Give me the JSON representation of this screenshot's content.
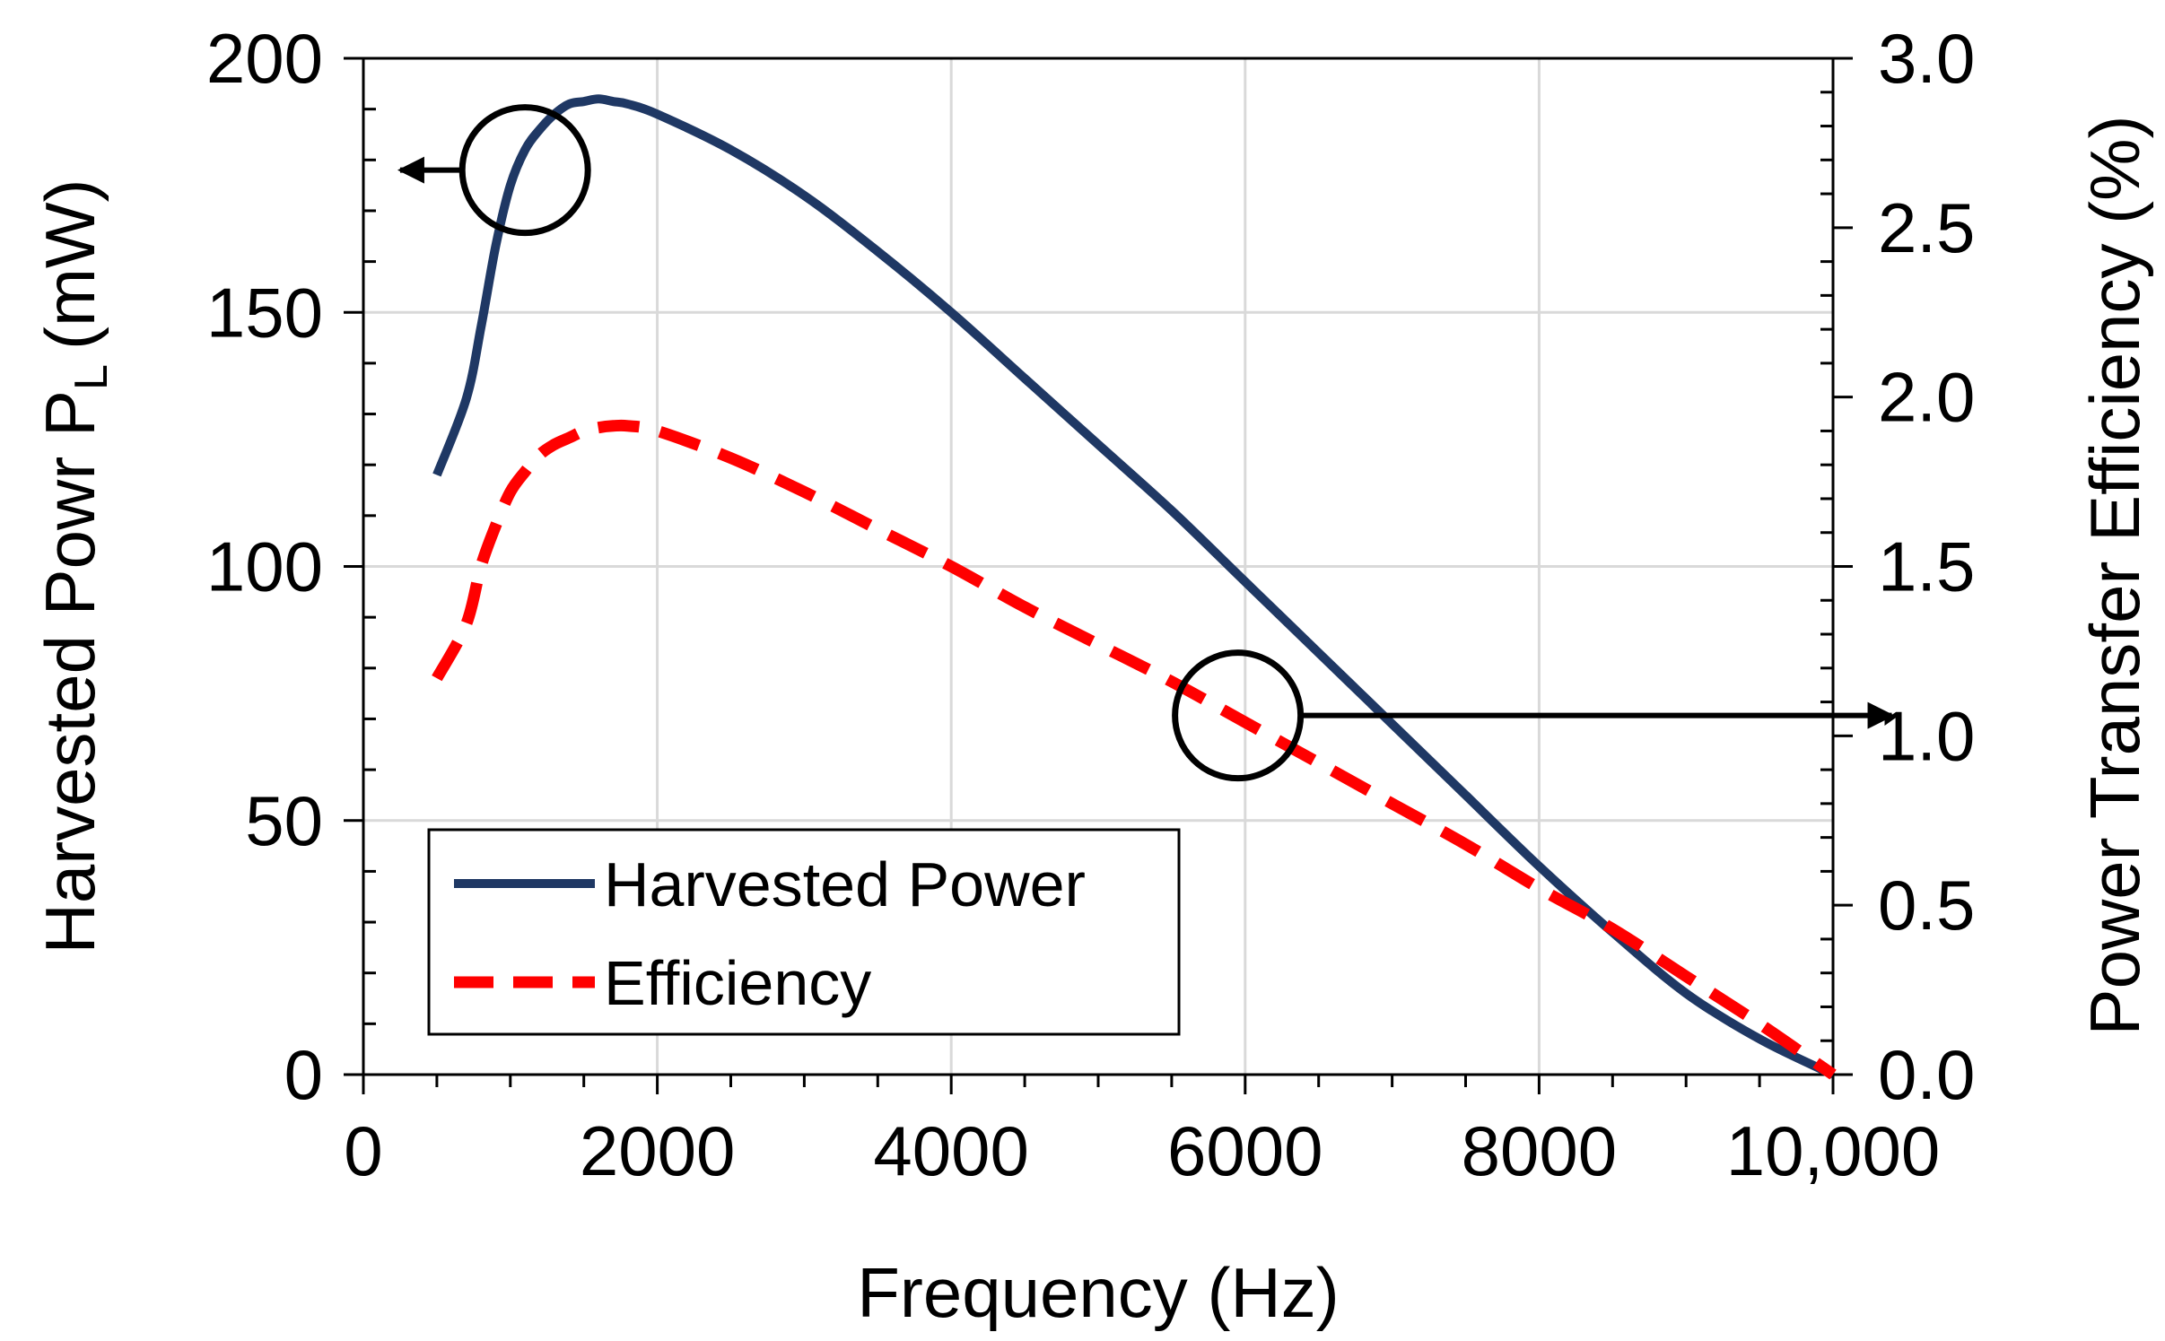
{
  "chart_data": {
    "type": "line",
    "title": "",
    "xlabel": "Frequency (Hz)",
    "ylabel": "Harvested Powr P",
    "ylabel_sub": "L",
    "ylabel_unit": "(mW)",
    "y2label": "Power Transfer Efficiency (%)",
    "xlim": [
      0,
      10000
    ],
    "ylim": [
      0,
      200
    ],
    "y2lim": [
      0,
      3.0
    ],
    "x_ticks": [
      0,
      2000,
      4000,
      6000,
      8000,
      10000
    ],
    "x_tick_labels": [
      "0",
      "2000",
      "4000",
      "6000",
      "8000",
      "10,000"
    ],
    "y_ticks": [
      0,
      50,
      100,
      150,
      200
    ],
    "y_tick_labels": [
      "0",
      "50",
      "100",
      "150",
      "200"
    ],
    "y2_ticks": [
      0,
      0.5,
      1.0,
      1.5,
      2.0,
      2.5,
      3.0
    ],
    "y2_tick_labels": [
      "0.0",
      "0.5",
      "1.0",
      "1.5",
      "2.0",
      "2.5",
      "3.0"
    ],
    "grid": true,
    "legend_position": "bottom-left",
    "series": [
      {
        "name": "Harvested Power",
        "axis": "left",
        "color": "#1f3864",
        "style": "solid",
        "x": [
          500,
          700,
          800,
          900,
          1000,
          1100,
          1200,
          1300,
          1400,
          1500,
          1600,
          1700,
          1800,
          2000,
          2500,
          3000,
          3500,
          4000,
          4500,
          5000,
          5500,
          6000,
          6500,
          7000,
          7500,
          8000,
          8500,
          9000,
          9500,
          10000
        ],
        "values": [
          118,
          133,
          147,
          163,
          175,
          182,
          186,
          189,
          191,
          191.5,
          192,
          191.5,
          191,
          189,
          182,
          173,
          162,
          150,
          137,
          124,
          111,
          97,
          83,
          69,
          55,
          41,
          28,
          16,
          7,
          0
        ]
      },
      {
        "name": "Efficiency",
        "axis": "right",
        "color": "#ff0000",
        "style": "dashed",
        "x": [
          500,
          700,
          800,
          900,
          1000,
          1100,
          1200,
          1300,
          1400,
          1500,
          1600,
          1700,
          1800,
          2000,
          2500,
          3000,
          3500,
          4000,
          4500,
          5000,
          5500,
          6000,
          6500,
          7000,
          7500,
          8000,
          8500,
          9000,
          9500,
          10000
        ],
        "values": [
          1.17,
          1.33,
          1.5,
          1.62,
          1.72,
          1.78,
          1.83,
          1.86,
          1.88,
          1.9,
          1.91,
          1.915,
          1.915,
          1.9,
          1.82,
          1.72,
          1.61,
          1.5,
          1.38,
          1.27,
          1.16,
          1.04,
          0.92,
          0.8,
          0.68,
          0.55,
          0.43,
          0.29,
          0.15,
          0.0
        ]
      }
    ],
    "annotations": [
      {
        "label": "circle-arrow-left",
        "target_axis": "left",
        "circle_at": [
          1100,
          178
        ],
        "arrow_to_x": 250
      },
      {
        "label": "circle-arrow-right",
        "target_axis": "right",
        "circle_at": [
          5950,
          1.06
        ],
        "arrow_to_x": 10400
      }
    ]
  }
}
